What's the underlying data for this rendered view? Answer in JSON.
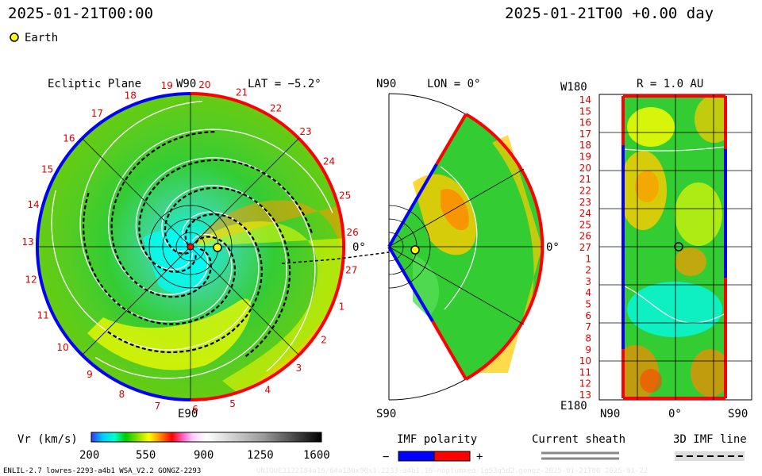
{
  "header": {
    "timestamp_left": "2025-01-21T00:00",
    "timestamp_right": "2025-01-21T00 +0.00 day",
    "legend_marker": "Earth"
  },
  "ecliptic_panel": {
    "title": "Ecliptic Plane",
    "top_label": "W90",
    "lat_label": "LAT = −5.2°",
    "right_label": "0°",
    "bottom_label": "E90",
    "rim_numbers": [
      "20",
      "21",
      "22",
      "23",
      "24",
      "25",
      "26",
      "27",
      "1",
      "2",
      "3",
      "4",
      "5",
      "6",
      "7",
      "8",
      "9",
      "10",
      "11",
      "12",
      "13",
      "14",
      "15",
      "16",
      "17",
      "18",
      "19"
    ]
  },
  "meridional_panel": {
    "top_label": "N90",
    "lon_label": "LON = 0°",
    "right_label": "0°",
    "bottom_label": "S90"
  },
  "synoptic_panel": {
    "top_left_label": "W180",
    "title": "R = 1.0 AU",
    "bottom_left_label": "E180",
    "bottom_labels": [
      "N90",
      "0°",
      "S90"
    ],
    "row_labels": [
      "14",
      "15",
      "16",
      "17",
      "18",
      "19",
      "20",
      "21",
      "22",
      "23",
      "24",
      "25",
      "26",
      "27",
      "1",
      "2",
      "3",
      "4",
      "5",
      "6",
      "7",
      "8",
      "9",
      "10",
      "11",
      "12",
      "13"
    ]
  },
  "colorbar": {
    "label": "Vr (km/s)",
    "ticks": [
      "200",
      "550",
      "900",
      "1250",
      "1600"
    ]
  },
  "imf_polarity": {
    "title": "IMF polarity",
    "minus": "−",
    "plus": "+",
    "colors": {
      "negative": "#0000ff",
      "positive": "#ff0000"
    }
  },
  "current_sheath": {
    "title": "Current sheath"
  },
  "imf_line": {
    "title": "3D IMF line"
  },
  "footer": {
    "left": "ENLIL-2.7 lowres-2293-a4b1 WSA_V2.2 GONGZ-2293",
    "right": "UNIQUE3122184a16/64a130x90x1.2233-a4b1.16-noplumxed-1g53q5d2.gongz-2025-01-21T00   2025-01-22"
  },
  "colors": {
    "earth": "#ffff00",
    "background": "#ffffff"
  }
}
